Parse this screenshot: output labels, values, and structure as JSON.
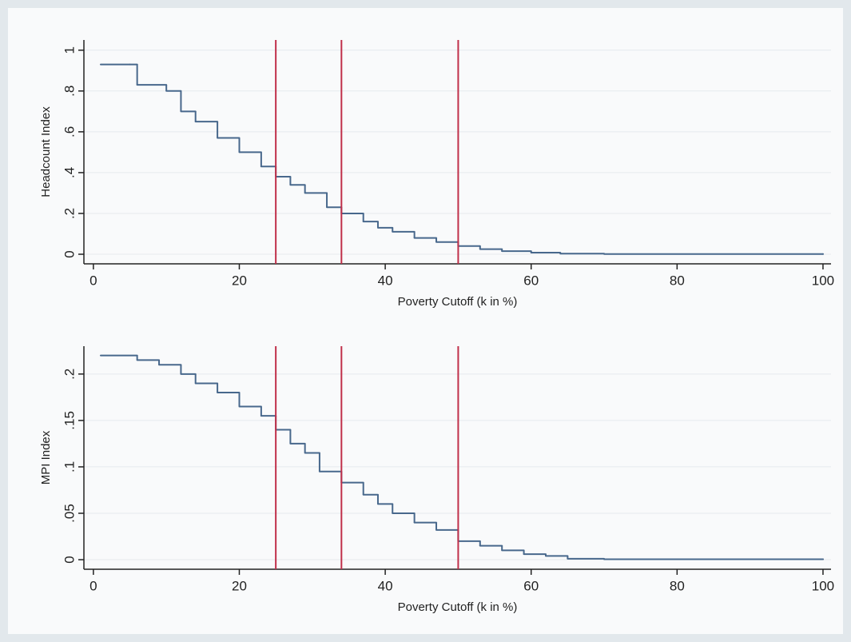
{
  "chart_data": [
    {
      "type": "line",
      "step": true,
      "color": "#48688c",
      "vline_color": "#c0304a",
      "y_label": "Headcount Index",
      "x_label": "Poverty Cutoff (k in %)",
      "xlim": [
        -1.3,
        101.1
      ],
      "xticks": [
        0,
        20,
        40,
        60,
        80,
        100
      ],
      "ylim": [
        -0.047,
        1.05
      ],
      "yticks": [
        0,
        {
          "value": 0.2,
          "label": ".2"
        },
        {
          "value": 0.4,
          "label": ".4"
        },
        {
          "value": 0.6,
          "label": ".6"
        },
        {
          "value": 0.8,
          "label": ".8"
        },
        1
      ],
      "grid": true,
      "vlines": [
        25,
        34,
        50
      ],
      "x": [
        1,
        5,
        6,
        10,
        12,
        14,
        17,
        20,
        23,
        25,
        27,
        29,
        32,
        34,
        37,
        39,
        41,
        44,
        47,
        50,
        53,
        56,
        60,
        64,
        70,
        100
      ],
      "values": [
        0.93,
        0.93,
        0.83,
        0.8,
        0.7,
        0.65,
        0.57,
        0.5,
        0.43,
        0.38,
        0.34,
        0.3,
        0.23,
        0.2,
        0.16,
        0.13,
        0.11,
        0.08,
        0.06,
        0.04,
        0.025,
        0.015,
        0.008,
        0.003,
        0.001,
        0.001
      ]
    },
    {
      "type": "line",
      "step": true,
      "color": "#48688c",
      "vline_color": "#c0304a",
      "y_label": "MPI Index",
      "x_label": "Poverty Cutoff (k in %)",
      "xlim": [
        -1.3,
        101.1
      ],
      "xticks": [
        0,
        20,
        40,
        60,
        80,
        100
      ],
      "ylim": [
        -0.0103,
        0.23
      ],
      "yticks": [
        0,
        {
          "value": 0.05,
          "label": ".05"
        },
        {
          "value": 0.1,
          "label": ".1"
        },
        {
          "value": 0.15,
          "label": ".15"
        },
        {
          "value": 0.2,
          "label": ".2"
        }
      ],
      "grid": true,
      "vlines": [
        25,
        34,
        50
      ],
      "x": [
        1,
        6,
        9,
        12,
        14,
        17,
        20,
        23,
        25,
        27,
        29,
        31,
        34,
        37,
        39,
        41,
        44,
        47,
        50,
        53,
        56,
        59,
        62,
        65,
        70,
        100
      ],
      "values": [
        0.22,
        0.215,
        0.21,
        0.2,
        0.19,
        0.18,
        0.165,
        0.155,
        0.14,
        0.125,
        0.115,
        0.095,
        0.083,
        0.07,
        0.06,
        0.05,
        0.04,
        0.032,
        0.02,
        0.015,
        0.01,
        0.006,
        0.004,
        0.001,
        0.0005,
        0.0005
      ]
    }
  ]
}
